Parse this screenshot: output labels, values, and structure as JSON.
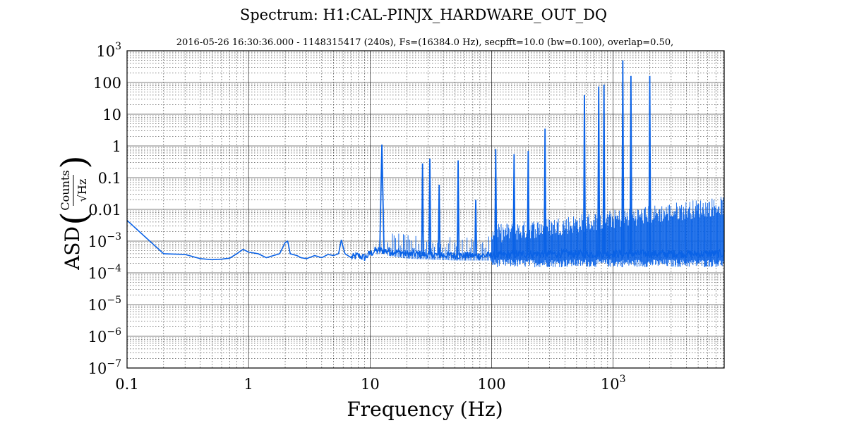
{
  "chart_data": {
    "type": "line",
    "title": "Spectrum: H1:CAL-PINJX_HARDWARE_OUT_DQ",
    "subtitle": "2016-05-26 16:30:36.000 - 1148315417 (240s), Fs=(16384.0 Hz), secpfft=10.0 (bw=0.100), overlap=0.50,",
    "xlabel": "Frequency (Hz)",
    "ylabel": {
      "prefix": "ASD",
      "numerator": "Counts",
      "denominator": "√Hz"
    },
    "x_scale": "log",
    "y_scale": "log",
    "xlim": [
      0.1,
      8192
    ],
    "ylim": [
      1e-07,
      1000
    ],
    "grid": true,
    "line_color": "#0a62e6",
    "x_ticks": [
      {
        "value": 0.1,
        "label": "0.1"
      },
      {
        "value": 1,
        "label": "1"
      },
      {
        "value": 10,
        "label": "10"
      },
      {
        "value": 100,
        "label": "100"
      },
      {
        "value": 1000,
        "label": "10",
        "exp": "3"
      }
    ],
    "y_ticks": [
      {
        "value": 1e-07,
        "label": "10",
        "exp": "−7"
      },
      {
        "value": 1e-06,
        "label": "10",
        "exp": "−6"
      },
      {
        "value": 1e-05,
        "label": "10",
        "exp": "−5"
      },
      {
        "value": 0.0001,
        "label": "10",
        "exp": "−4"
      },
      {
        "value": 0.001,
        "label": "10",
        "exp": "−3"
      },
      {
        "value": 0.01,
        "label": "0.01"
      },
      {
        "value": 0.1,
        "label": "0.1"
      },
      {
        "value": 1,
        "label": "1"
      },
      {
        "value": 10,
        "label": "10"
      },
      {
        "value": 100,
        "label": "100"
      },
      {
        "value": 1000,
        "label": "10",
        "exp": "3"
      }
    ],
    "baseline": [
      [
        0.1,
        0.0045
      ],
      [
        0.2,
        0.0004
      ],
      [
        0.3,
        0.00038
      ],
      [
        0.4,
        0.00028
      ],
      [
        0.5,
        0.00026
      ],
      [
        0.6,
        0.00027
      ],
      [
        0.7,
        0.00029
      ],
      [
        0.8,
        0.0004
      ],
      [
        0.9,
        0.00055
      ],
      [
        1.0,
        0.00045
      ],
      [
        1.2,
        0.0004
      ],
      [
        1.4,
        0.0003
      ],
      [
        1.6,
        0.00035
      ],
      [
        1.8,
        0.0004
      ],
      [
        2.0,
        0.0009
      ],
      [
        2.1,
        0.001
      ],
      [
        2.2,
        0.0004
      ],
      [
        2.5,
        0.00035
      ],
      [
        2.7,
        0.0003
      ],
      [
        3.0,
        0.00028
      ],
      [
        3.5,
        0.00035
      ],
      [
        4.0,
        0.0003
      ],
      [
        4.5,
        0.00038
      ],
      [
        5.0,
        0.00035
      ],
      [
        5.5,
        0.0004
      ],
      [
        5.8,
        0.0011
      ],
      [
        6.2,
        0.0004
      ],
      [
        7.0,
        0.0003
      ],
      [
        8.0,
        0.00035
      ],
      [
        9.0,
        0.0003
      ],
      [
        10.0,
        0.0004
      ],
      [
        11.0,
        0.0005
      ],
      [
        14.0,
        0.0005
      ],
      [
        20.0,
        0.0004
      ],
      [
        50.0,
        0.00035
      ],
      [
        100.0,
        0.00035
      ],
      [
        200.0,
        0.0004
      ],
      [
        500.0,
        0.0004
      ],
      [
        1000.0,
        0.0004
      ],
      [
        8192.0,
        0.0004
      ]
    ],
    "peaks": [
      {
        "freq": 12.5,
        "asd": 1.1
      },
      {
        "freq": 27,
        "asd": 0.28
      },
      {
        "freq": 31,
        "asd": 0.4
      },
      {
        "freq": 37,
        "asd": 0.06
      },
      {
        "freq": 53,
        "asd": 0.35
      },
      {
        "freq": 74,
        "asd": 0.02
      },
      {
        "freq": 108,
        "asd": 0.8
      },
      {
        "freq": 153,
        "asd": 0.55
      },
      {
        "freq": 200,
        "asd": 0.7
      },
      {
        "freq": 275,
        "asd": 3.5
      },
      {
        "freq": 580,
        "asd": 40
      },
      {
        "freq": 760,
        "asd": 75
      },
      {
        "freq": 840,
        "asd": 85
      },
      {
        "freq": 1200,
        "asd": 500
      },
      {
        "freq": 1400,
        "asd": 160
      },
      {
        "freq": 2000,
        "asd": 160
      }
    ],
    "noise_floor": {
      "from_freq": 100,
      "upper_asd": 0.01,
      "lower_asd": 0.00015
    }
  }
}
